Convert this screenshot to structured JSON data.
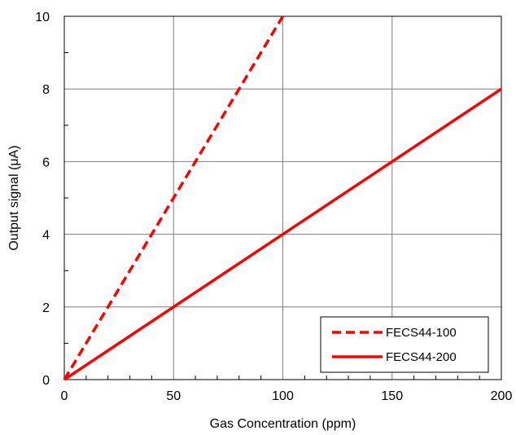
{
  "chart_data": {
    "type": "line",
    "title": "",
    "xlabel": "Gas Concentration (ppm)",
    "ylabel": "Output signal (μA)",
    "xlim": [
      0,
      200
    ],
    "ylim": [
      0,
      10
    ],
    "x_ticks": [
      "0",
      "50",
      "100",
      "150",
      "200"
    ],
    "y_ticks": [
      "0",
      "2",
      "4",
      "6",
      "8",
      "10"
    ],
    "x_tick_values": [
      0,
      50,
      100,
      150,
      200
    ],
    "y_tick_values": [
      0,
      2,
      4,
      6,
      8,
      10
    ],
    "grid": true,
    "legend_position": "bottom-right",
    "series": [
      {
        "name": "FECS44-100",
        "style": "dashed",
        "color": "#ff0000",
        "x": [
          0,
          100
        ],
        "y": [
          0,
          10
        ]
      },
      {
        "name": "FECS44-200",
        "style": "solid",
        "color": "#ff0000",
        "x": [
          0,
          200
        ],
        "y": [
          0,
          8
        ]
      }
    ]
  }
}
